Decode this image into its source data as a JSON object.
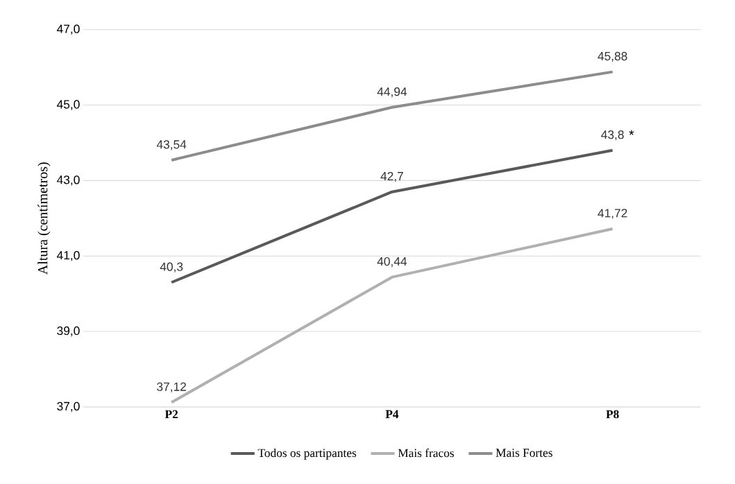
{
  "chart_data": {
    "type": "line",
    "ylabel": "Altura (centímetros)",
    "categories": [
      "P2",
      "P4",
      "P8"
    ],
    "series": [
      {
        "name": "Todos os partipantes",
        "color": "#595959",
        "values": [
          40.3,
          42.7,
          43.8
        ],
        "value_labels": [
          "40,3",
          "42,7",
          "43,8"
        ]
      },
      {
        "name": "Mais fracos",
        "color": "#b0b0b0",
        "values": [
          37.12,
          40.44,
          41.72
        ],
        "value_labels": [
          "37,12",
          "40,44",
          "41,72"
        ]
      },
      {
        "name": "Mais Fortes",
        "color": "#8c8c8c",
        "values": [
          43.54,
          44.94,
          45.88
        ],
        "value_labels": [
          "43,54",
          "44,94",
          "45,88"
        ]
      }
    ],
    "ylim": [
      37,
      47
    ],
    "yticks": [
      {
        "value": 37,
        "label": "37,0"
      },
      {
        "value": 39,
        "label": "39,0"
      },
      {
        "value": 41,
        "label": "41,0"
      },
      {
        "value": 43,
        "label": "43,0"
      },
      {
        "value": 45,
        "label": "45,0"
      },
      {
        "value": 47,
        "label": "47,0"
      }
    ],
    "annotations": [
      {
        "text": "*",
        "x": "P8",
        "y": 43.8
      }
    ],
    "grid": "y",
    "legend": "bottom",
    "marker": "none",
    "line_style": "solid"
  }
}
